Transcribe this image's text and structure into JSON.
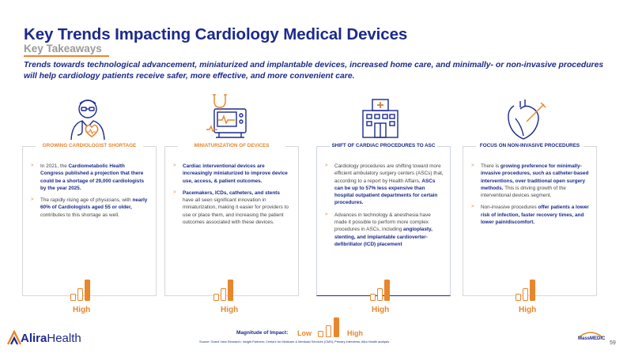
{
  "header": {
    "title": "Key Trends Impacting Cardiology Medical Devices",
    "subtitle": "Key Takeaways",
    "intro": "Trends towards technological advancement, miniaturized and implantable devices, increased home care, and minimally- or non-invasive procedures will help cardiology patients receive safer, more effective, and more convenient care."
  },
  "cards": [
    {
      "icon": "doctor-heart-icon",
      "title": "GROWING CARDIOLOGIST SHORTAGE",
      "bullets": [
        [
          {
            "t": "In 2021, the "
          },
          {
            "t": "Cardiometabolic Health Congress published a projection that there could be a shortage of 29,000 cardiologists by the year 2025.",
            "b": true
          }
        ],
        [
          {
            "t": "The rapidly rising age of physicians, with "
          },
          {
            "t": "nearly 60% of Cardiologists aged 55 or older,",
            "b": true
          },
          {
            "t": " contributes to this shortage as well."
          }
        ]
      ],
      "impact": "High",
      "impact_level": 3
    },
    {
      "icon": "monitor-stethoscope-icon",
      "title": "MINIATURIZATION OF DEVICES",
      "bullets": [
        [
          {
            "t": "Cardiac interventional devices are increasingly miniaturized to improve device use, access, & patient outcomes.",
            "b": true
          }
        ],
        [
          {
            "t": "Pacemakers, ICDs, catheters, and stents",
            "b": true
          },
          {
            "t": " have all seen significant innovation in miniaturization, making it easier for providers to use or place them, and increasing the patient outcomes associated with these devices."
          }
        ]
      ],
      "impact": "High",
      "impact_level": 3
    },
    {
      "icon": "hospital-icon",
      "title": "SHIFT OF CARDIAC PROCEDURES TO ASC",
      "bullets": [
        [
          {
            "t": "Cardiology procedures are shifting toward more efficient ambulatory surgery centers (ASCs) that, according to a report by Health Affairs, "
          },
          {
            "t": "ASCs can be up to 57% less expensive than hospital outpatient departments for certain procedures.",
            "b": true
          }
        ],
        [
          {
            "t": "Advances in technology & anesthesia have made it possible to perform more complex procedures in ASCs, including "
          },
          {
            "t": "angioplasty, stenting, and implantable cardioverter-defibrillator (ICD) placement",
            "b": true
          }
        ]
      ],
      "impact": "High",
      "impact_level": 3
    },
    {
      "icon": "heart-catheter-icon",
      "title": "FOCUS ON NON-INVASIVE PROCEDURES",
      "bullets": [
        [
          {
            "t": "There is "
          },
          {
            "t": "growing preference for minimally-invasive procedures, such as catheter-based interventions, over traditional open surgery methods.",
            "b": true
          },
          {
            "t": " This is driving growth of the interventional devices segment."
          }
        ],
        [
          {
            "t": "Non-invasive procedures "
          },
          {
            "t": "offer patients a lower risk of infection, faster recovery times, and lower pain/discomfort.",
            "b": true
          }
        ]
      ],
      "impact": "High",
      "impact_level": 3
    }
  ],
  "legend": {
    "label": "Magnitude of Impact:",
    "low": "Low",
    "high": "High"
  },
  "footer": {
    "source": "Source: Grand View Research; Insight Partners; Centers for Medicare & Medicaid Services (CMS); Primary interviews; Alira Health analysis.",
    "brand_bold": "Alira",
    "brand_rest": "Health",
    "partner": "MassMEDIC",
    "page": "59"
  },
  "colors": {
    "navy": "#1b2a8a",
    "orange": "#e8862c",
    "grey": "#9a9a9a"
  }
}
